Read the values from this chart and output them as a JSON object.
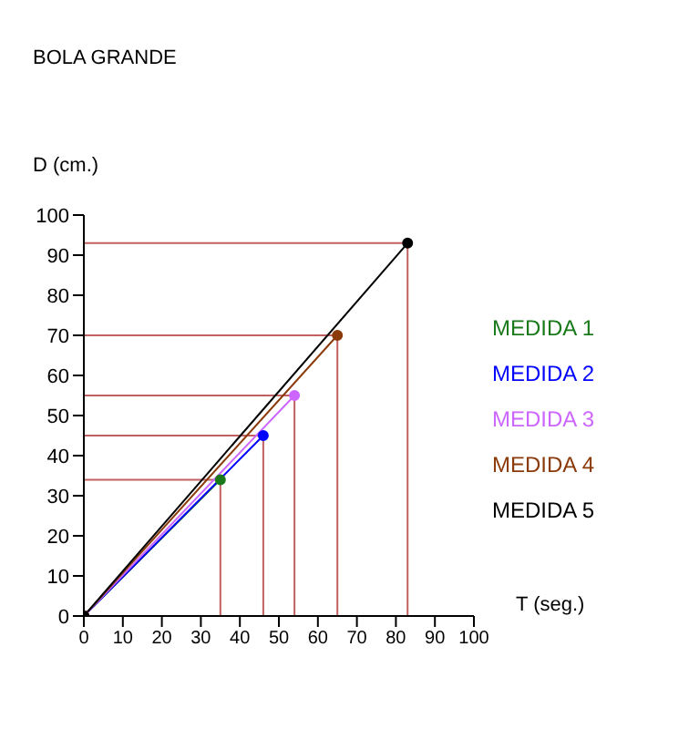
{
  "chart_data": {
    "type": "line",
    "title": "BOLA GRANDE",
    "xlabel": "T (seg.)",
    "ylabel": "D (cm.)",
    "xlim": [
      0,
      100
    ],
    "xticks": [
      0,
      10,
      20,
      30,
      40,
      50,
      60,
      70,
      80,
      90,
      100
    ],
    "ylim": [
      0,
      100
    ],
    "yticks": [
      0,
      10,
      20,
      30,
      40,
      50,
      60,
      70,
      80,
      90,
      100
    ],
    "grid": false,
    "legend": "right",
    "marker": "circle",
    "line_style": "solid",
    "series": [
      {
        "name": "MEDIDA 1",
        "color": "#1a7a1a",
        "x": [
          0,
          35
        ],
        "values": [
          0,
          34
        ]
      },
      {
        "name": "MEDIDA 2",
        "color": "#0000ff",
        "x": [
          0,
          46
        ],
        "values": [
          0,
          45
        ]
      },
      {
        "name": "MEDIDA 3",
        "color": "#cc66ff",
        "x": [
          0,
          54
        ],
        "values": [
          0,
          55
        ]
      },
      {
        "name": "MEDIDA 4",
        "color": "#8b3a0a",
        "x": [
          0,
          65
        ],
        "values": [
          0,
          70
        ]
      },
      {
        "name": "MEDIDA 5",
        "color": "#000000",
        "x": [
          0,
          83
        ],
        "values": [
          0,
          93
        ]
      },
      {
        "type": "line",
        "color": "#c06060",
        "marker": "none",
        "x": [
          0,
          35,
          35
        ],
        "values": [
          34,
          34,
          0
        ]
      },
      {
        "type": "line",
        "color": "#c06060",
        "marker": "none",
        "x": [
          0,
          46,
          46
        ],
        "values": [
          45,
          45,
          0
        ]
      },
      {
        "type": "line",
        "color": "#c06060",
        "marker": "none",
        "x": [
          0,
          54,
          54
        ],
        "values": [
          55,
          55,
          0
        ]
      },
      {
        "type": "line",
        "color": "#c06060",
        "marker": "none",
        "x": [
          0,
          65,
          65
        ],
        "values": [
          70,
          70,
          0
        ]
      },
      {
        "type": "line",
        "color": "#c06060",
        "marker": "none",
        "x": [
          0,
          83,
          83
        ],
        "values": [
          93,
          93,
          0
        ]
      }
    ]
  }
}
